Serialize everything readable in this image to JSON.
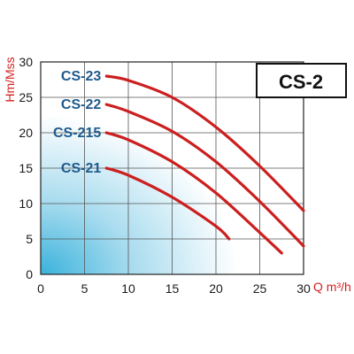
{
  "chart_data": {
    "type": "line",
    "title": "CS-2",
    "xlabel": "Q m³/h",
    "ylabel": "Hm/Mss",
    "xlim": [
      0,
      30
    ],
    "ylim": [
      0,
      30
    ],
    "xticks": [
      "0",
      "5",
      "10",
      "15",
      "20",
      "25",
      "30"
    ],
    "yticks": [
      "0",
      "5",
      "10",
      "15",
      "20",
      "25",
      "30"
    ],
    "grid": true,
    "legend": "inline-left",
    "colors": {
      "curve": "#cc1f1f",
      "label": "#1f5a8c",
      "gradient": "#3ab2dc"
    },
    "series": [
      {
        "name": "CS-23",
        "x": [
          7.5,
          10,
          15,
          20,
          25,
          30
        ],
        "y": [
          28,
          27.4,
          25,
          20.8,
          15.3,
          9
        ]
      },
      {
        "name": "CS-22",
        "x": [
          7.5,
          10,
          15,
          20,
          25,
          30
        ],
        "y": [
          24,
          23,
          20.2,
          15.9,
          10.3,
          4
        ]
      },
      {
        "name": "CS-215",
        "x": [
          7.5,
          10,
          15,
          20,
          25,
          27.5
        ],
        "y": [
          20,
          19,
          15.9,
          11.5,
          5.9,
          3
        ]
      },
      {
        "name": "CS-21",
        "x": [
          7.5,
          10,
          15,
          20,
          21.5
        ],
        "y": [
          15,
          14,
          10.9,
          6.8,
          5
        ]
      }
    ]
  }
}
